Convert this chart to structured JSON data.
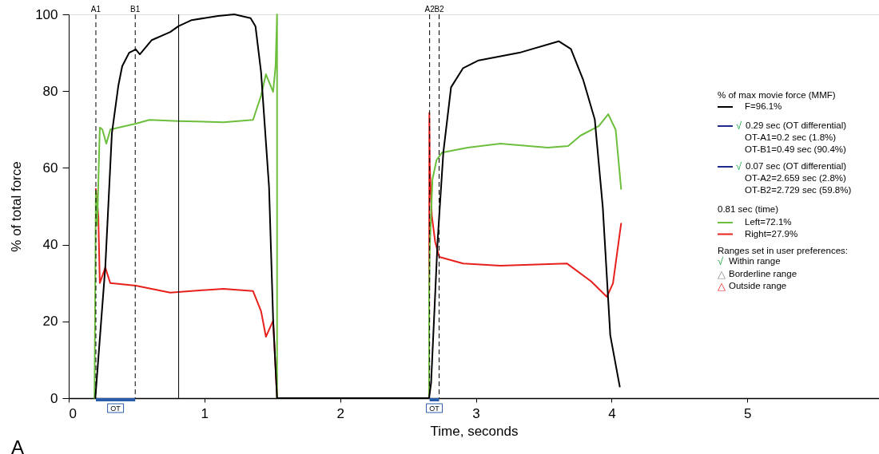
{
  "chart_data": {
    "type": "line",
    "xlabel": "Time, seconds",
    "ylabel": "% of total force",
    "legend_title": "% of max movie force (MMF)",
    "xlim": [
      0,
      5.97
    ],
    "ylim": [
      0,
      100
    ],
    "xticks": [
      0,
      1,
      2,
      3,
      4,
      5
    ],
    "yticks": [
      0,
      20,
      40,
      60,
      80,
      100
    ],
    "grid": false,
    "legend": "right",
    "marker": "none",
    "line_style": "solid",
    "series": [
      {
        "name": "F=96.1%",
        "color": "#000000",
        "x": [
          0.196,
          0.27,
          0.318,
          0.366,
          0.394,
          0.445,
          0.494,
          0.524,
          0.612,
          0.748,
          0.808,
          0.906,
          1.1,
          1.22,
          1.34,
          1.376,
          1.417,
          1.476,
          1.506,
          1.535,
          2.655,
          2.67,
          2.718,
          2.76,
          2.817,
          2.906,
          3.02,
          3.32,
          3.61,
          3.7,
          3.79,
          3.876,
          3.935,
          3.99,
          4.06
        ],
        "values": [
          0,
          34.5,
          69,
          81.5,
          86.5,
          90,
          90.9,
          89.6,
          93.3,
          95.4,
          96.9,
          98.5,
          99.6,
          100,
          99,
          96.9,
          85,
          55,
          20.6,
          0,
          0,
          4,
          41,
          64,
          81,
          86,
          88,
          90,
          93,
          91,
          83,
          72.6,
          49.7,
          16.4,
          3
        ]
      },
      {
        "name": "Left=72.1%",
        "color": "#6cbf3c",
        "x": [
          0.19,
          0.2,
          0.21,
          0.229,
          0.248,
          0.277,
          0.307,
          0.494,
          0.594,
          0.806,
          1.14,
          1.358,
          1.417,
          1.453,
          1.506,
          1.524,
          1.535,
          1.535,
          2.655,
          2.655,
          2.66,
          2.68,
          2.71,
          2.75,
          2.94,
          3.18,
          3.53,
          3.68,
          3.77,
          3.906,
          3.975,
          4.03,
          4.07
        ],
        "values": [
          0,
          54,
          45,
          70.5,
          70,
          66.3,
          70,
          71.5,
          72.5,
          72.2,
          71.9,
          72.5,
          78.8,
          84.4,
          79.8,
          86.5,
          100,
          0,
          0,
          26,
          39,
          57,
          62,
          64,
          65.3,
          66.3,
          65.3,
          65.7,
          68.4,
          70.9,
          74,
          69.9,
          54.5
        ]
      },
      {
        "name": "Right=27.9%",
        "color": "#e8201c",
        "x": [
          0.2,
          0.218,
          0.229,
          0.27,
          0.306,
          0.494,
          0.748,
          1.14,
          1.358,
          1.417,
          1.453,
          1.506,
          1.535,
          2.655,
          2.657,
          2.66,
          2.675,
          2.7,
          2.73,
          2.906,
          3.18,
          3.67,
          3.85,
          3.965,
          4.01,
          4.07
        ],
        "values": [
          54.5,
          47.6,
          30,
          34,
          30,
          29.3,
          27.5,
          28.5,
          27.9,
          22.7,
          16,
          20.2,
          0,
          0,
          74.3,
          60.8,
          47.6,
          40.7,
          36.8,
          35.1,
          34.5,
          35.1,
          30.4,
          26.4,
          29.9,
          45.5
        ]
      }
    ],
    "ref_lines": [
      {
        "axis": "x",
        "value": 0.2,
        "label": "A1",
        "line_style": "dashed",
        "color": "#000000"
      },
      {
        "axis": "x",
        "value": 0.49,
        "label": "B1",
        "line_style": "dashed",
        "color": "#000000"
      },
      {
        "axis": "x",
        "value": 0.81,
        "label": null,
        "line_style": "solid",
        "color": "#000000"
      },
      {
        "axis": "x",
        "value": 2.659,
        "label": "A2",
        "line_style": "dashed",
        "color": "#000000"
      },
      {
        "axis": "x",
        "value": 2.729,
        "label": "B2",
        "line_style": "dashed",
        "color": "#000000"
      }
    ],
    "annotations": [
      "OT",
      "OT",
      "√ 0.29 sec (OT differential)",
      "OT-A1=0.2 sec (1.8%)",
      "OT-B1=0.49 sec (90.4%)",
      "√ 0.07 sec (OT differential)",
      "OT-A2=2.659 sec (2.8%)",
      "OT-B2=2.729 sec (59.8%)",
      "0.81 sec (time)",
      "Ranges set in user preferences:",
      "√ Within range",
      "△ Borderline range",
      "△ Outside range",
      "A"
    ]
  }
}
